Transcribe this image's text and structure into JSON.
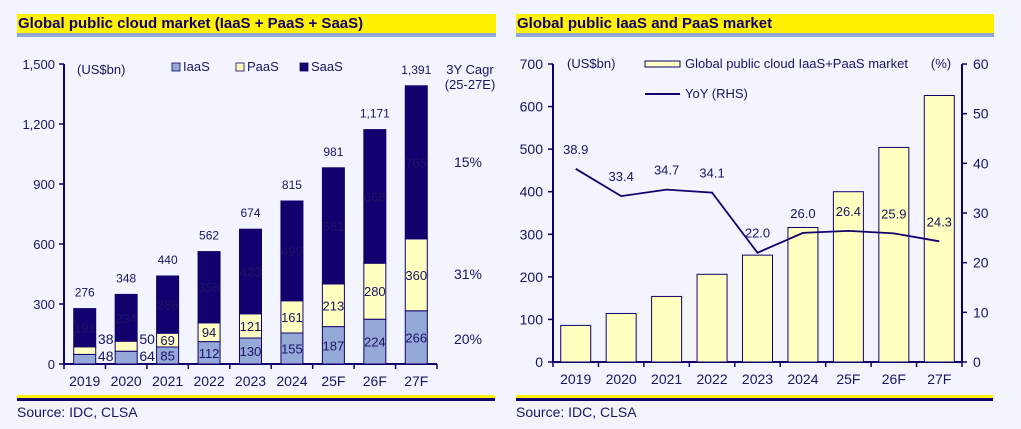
{
  "colors": {
    "iaas": "#95a9d8",
    "paas": "#ffffc0",
    "saas": "#12006e",
    "axis": "#12006e",
    "title_bg": "#fff200"
  },
  "chart_data": [
    {
      "type": "bar",
      "stacked": true,
      "title": "Global public cloud market (IaaS + PaaS + SaaS)",
      "ylabel": "(US$bn)",
      "ylim": [
        0,
        1500
      ],
      "yticks": [
        0,
        300,
        600,
        900,
        1200,
        1500
      ],
      "ytick_labels": [
        "0",
        "300",
        "600",
        "900",
        "1,200",
        "1,500"
      ],
      "categories": [
        "2019",
        "2020",
        "2021",
        "2022",
        "2023",
        "2024",
        "25F",
        "26F",
        "27F"
      ],
      "series": [
        {
          "name": "IaaS",
          "values": [
            48,
            64,
            85,
            112,
            130,
            155,
            187,
            224,
            266
          ]
        },
        {
          "name": "PaaS",
          "values": [
            38,
            50,
            69,
            94,
            121,
            161,
            213,
            280,
            360
          ]
        },
        {
          "name": "SaaS",
          "values": [
            191,
            234,
            286,
            356,
            423,
            499,
            581,
            668,
            765
          ]
        }
      ],
      "totals": [
        "276",
        "348",
        "440",
        "562",
        "674",
        "815",
        "981",
        "1,171",
        "1,391"
      ],
      "legend": "top",
      "cagr": {
        "header": [
          "3Y Cagr",
          "(25-27E)"
        ],
        "SaaS": "15%",
        "PaaS": "31%",
        "IaaS": "20%"
      },
      "source": "Source: IDC, CLSA"
    },
    {
      "type": "bar+line",
      "title": "Global public IaaS and PaaS market",
      "ylabel": "(US$bn)",
      "y2label": "(%)",
      "ylim": [
        0,
        700
      ],
      "yticks": [
        0,
        100,
        200,
        300,
        400,
        500,
        600,
        700
      ],
      "y2lim": [
        0,
        60
      ],
      "y2ticks": [
        0,
        10,
        20,
        30,
        40,
        50,
        60
      ],
      "categories": [
        "2019",
        "2020",
        "2021",
        "2022",
        "2023",
        "2024",
        "25F",
        "26F",
        "27F"
      ],
      "series": [
        {
          "name": "Global public cloud IaaS+PaaS market",
          "type": "bar",
          "values": [
            86,
            114,
            154,
            206,
            251,
            316,
            400,
            504,
            626
          ]
        },
        {
          "name": "YoY (RHS)",
          "type": "line",
          "values": [
            38.9,
            33.4,
            34.7,
            34.1,
            22.0,
            26.0,
            26.4,
            25.9,
            24.3
          ],
          "labels": [
            "38.9",
            "33.4",
            "34.7",
            "34.1",
            "22.0",
            "26.0",
            "26.4",
            "25.9",
            "24.3"
          ]
        }
      ],
      "legend": "top",
      "source": "Source: IDC, CLSA"
    }
  ]
}
